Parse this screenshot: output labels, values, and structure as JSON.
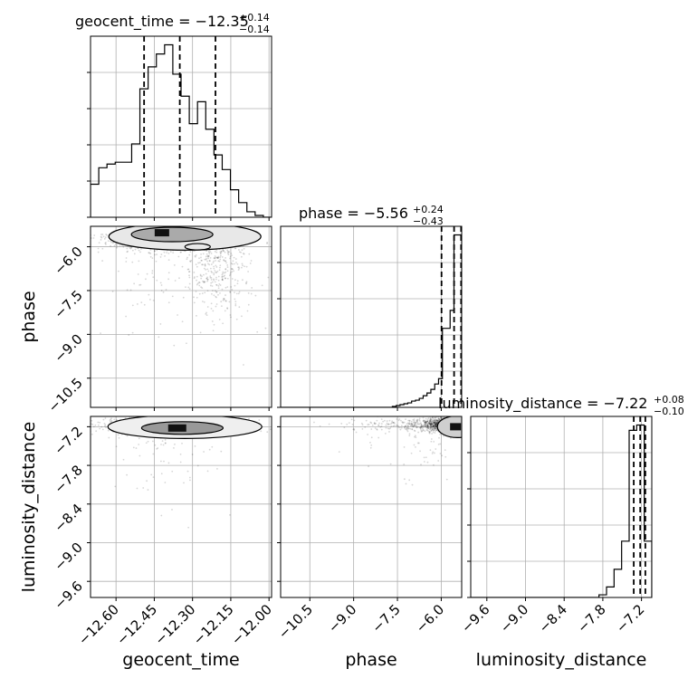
{
  "chart_data": {
    "type": "corner",
    "parameters": [
      "geocent_time",
      "phase",
      "luminosity_distance"
    ],
    "titles": [
      {
        "param": "geocent_time",
        "text": "geocent_time = −12.35",
        "sup": "+0.14",
        "sub": "−0.14"
      },
      {
        "param": "phase",
        "text": "phase = −5.56",
        "sup": "+0.24",
        "sub": "−0.43"
      },
      {
        "param": "luminosity_distance",
        "text": "luminosity_distance = −7.22",
        "sup": "+0.08",
        "sub": "−0.10"
      }
    ],
    "axes": {
      "geocent_time": {
        "range": [
          -12.7,
          -11.99
        ],
        "ticks": [
          -12.6,
          -12.45,
          -12.3,
          -12.15,
          -12.0
        ],
        "tick_labels": [
          "−12.60",
          "−12.45",
          "−12.30",
          "−12.15",
          "−12.00"
        ]
      },
      "phase": {
        "range": [
          -11.5,
          -5.3
        ],
        "ticks": [
          -10.5,
          -9.0,
          -7.5,
          -6.0
        ],
        "tick_labels": [
          "−10.5",
          "−9.0",
          "−7.5",
          "−6.0"
        ]
      },
      "luminosity_distance": {
        "range": [
          -9.85,
          -7.04
        ],
        "ticks": [
          -9.6,
          -9.0,
          -8.4,
          -7.8,
          -7.2
        ],
        "tick_labels": [
          "−9.6",
          "−9.0",
          "−8.4",
          "−7.8",
          "−7.2"
        ]
      }
    },
    "histograms": {
      "geocent_time": {
        "edges_range": [
          -12.7,
          -11.99
        ],
        "counts": [
          0.18,
          0.27,
          0.29,
          0.3,
          0.3,
          0.4,
          0.7,
          0.82,
          0.89,
          0.94,
          0.78,
          0.66,
          0.51,
          0.63,
          0.48,
          0.34,
          0.26,
          0.15,
          0.08,
          0.03,
          0.01,
          0.0
        ],
        "quantiles": [
          -12.49,
          -12.35,
          -12.21
        ]
      },
      "phase": {
        "edges_range": [
          -11.5,
          -5.3
        ],
        "counts": [
          0,
          0,
          0,
          0,
          0,
          0,
          0,
          0,
          0,
          0,
          0,
          0,
          0,
          0,
          0,
          0,
          0,
          0,
          0,
          0,
          0,
          0,
          0,
          0,
          0,
          0,
          0,
          0,
          0,
          0.005,
          0.01,
          0.015,
          0.02,
          0.025,
          0.035,
          0.04,
          0.05,
          0.065,
          0.08,
          0.1,
          0.13,
          0.16,
          0.44,
          0.44,
          0.54,
          0.96,
          0.96
        ],
        "quantiles": [
          -5.99,
          -5.56,
          -5.32
        ]
      },
      "luminosity_distance": {
        "edges_range": [
          -9.85,
          -7.04
        ],
        "counts": [
          0,
          0,
          0,
          0,
          0,
          0,
          0,
          0,
          0,
          0,
          0,
          0,
          0,
          0,
          0,
          0,
          0,
          0.015,
          0.06,
          0.16,
          0.32,
          0.95,
          0.98,
          0.32
        ],
        "quantiles": [
          -7.32,
          -7.22,
          -7.14
        ]
      }
    },
    "grid": true,
    "legend": "none"
  }
}
